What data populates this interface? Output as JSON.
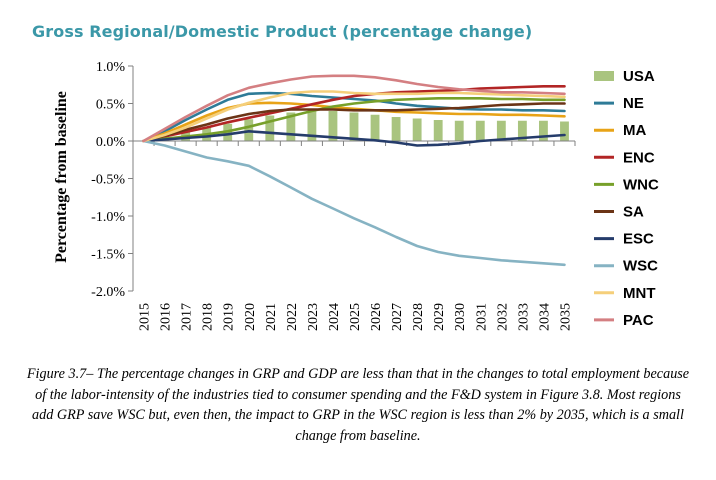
{
  "header": {
    "title": "Gross Regional/Domestic Product (percentage change)"
  },
  "caption": "Figure 3.7– The percentage changes in GRP and GDP are less than that in the changes to total employment because of the labor-intensity of the industries tied to consumer spending and the F&D system in Figure 3.8. Most regions add GRP save WSC but, even then, the impact to GRP in the WSC region is less than 2% by 2035, which is a small change from baseline.",
  "chart_data": {
    "type": "bar+line",
    "title": "Gross Regional/Domestic Product (percentage change)",
    "xlabel": "",
    "ylabel": "Percentage from baseline",
    "ylim": [
      -0.02,
      0.01
    ],
    "yticks": [
      0.01,
      0.005,
      0.0,
      -0.005,
      -0.01,
      -0.015,
      -0.02
    ],
    "ytick_labels": [
      "1.0%",
      "0.5%",
      "0.0%",
      "-0.5%",
      "-1.0%",
      "-1.5%",
      "-2.0%"
    ],
    "grid": false,
    "legend_position": "right",
    "categories": [
      "2015",
      "2016",
      "2017",
      "2018",
      "2019",
      "2020",
      "2021",
      "2022",
      "2023",
      "2024",
      "2025",
      "2026",
      "2027",
      "2028",
      "2029",
      "2030",
      "2031",
      "2032",
      "2033",
      "2034",
      "2035"
    ],
    "bar_series": {
      "name": "USA",
      "color": "#a9c47f",
      "values": [
        0.0,
        0.0007,
        0.0014,
        0.0018,
        0.0023,
        0.0029,
        0.0034,
        0.0038,
        0.004,
        0.004,
        0.0038,
        0.0035,
        0.0032,
        0.003,
        0.0028,
        0.0027,
        0.0027,
        0.0027,
        0.0027,
        0.0027,
        0.0026
      ]
    },
    "series": [
      {
        "name": "NE",
        "color": "#2e7b97",
        "values": [
          0.0,
          0.0013,
          0.0028,
          0.0042,
          0.0055,
          0.0063,
          0.0064,
          0.0063,
          0.006,
          0.0058,
          0.0056,
          0.0054,
          0.005,
          0.0047,
          0.0045,
          0.0043,
          0.0042,
          0.0042,
          0.0041,
          0.0041,
          0.004
        ]
      },
      {
        "name": "MA",
        "color": "#e8a317",
        "values": [
          0.0,
          0.001,
          0.0022,
          0.0034,
          0.0044,
          0.005,
          0.0051,
          0.005,
          0.0048,
          0.0045,
          0.0043,
          0.0041,
          0.0039,
          0.0038,
          0.0037,
          0.0036,
          0.0036,
          0.0035,
          0.0035,
          0.0034,
          0.0033
        ]
      },
      {
        "name": "ENC",
        "color": "#b22525",
        "values": [
          0.0,
          0.0006,
          0.0012,
          0.0018,
          0.0025,
          0.0031,
          0.0037,
          0.0043,
          0.0049,
          0.0055,
          0.006,
          0.0063,
          0.0065,
          0.0066,
          0.0067,
          0.0068,
          0.007,
          0.0071,
          0.0072,
          0.0073,
          0.0073
        ]
      },
      {
        "name": "WNC",
        "color": "#77a02a",
        "values": [
          0.0,
          0.0003,
          0.0006,
          0.0009,
          0.0013,
          0.0019,
          0.0026,
          0.0033,
          0.004,
          0.0046,
          0.005,
          0.0053,
          0.0055,
          0.0056,
          0.0057,
          0.0057,
          0.0057,
          0.0056,
          0.0056,
          0.0055,
          0.0055
        ]
      },
      {
        "name": "SA",
        "color": "#6b3416",
        "values": [
          0.0,
          0.0007,
          0.0015,
          0.0022,
          0.003,
          0.0036,
          0.004,
          0.0042,
          0.0042,
          0.0042,
          0.0041,
          0.0041,
          0.0041,
          0.0042,
          0.0043,
          0.0044,
          0.0046,
          0.0048,
          0.0049,
          0.005,
          0.005
        ]
      },
      {
        "name": "ESC",
        "color": "#253c6b",
        "values": [
          0.0,
          0.0002,
          0.0004,
          0.0006,
          0.0009,
          0.0013,
          0.0011,
          0.0009,
          0.0007,
          0.0005,
          0.0003,
          0.0001,
          -0.0002,
          -0.0006,
          -0.0005,
          -0.0003,
          0.0,
          0.0002,
          0.0004,
          0.0006,
          0.0008
        ]
      },
      {
        "name": "WSC",
        "color": "#86b3c3",
        "values": [
          0.0,
          -0.0006,
          -0.0014,
          -0.0022,
          -0.0027,
          -0.0033,
          -0.0047,
          -0.0062,
          -0.0077,
          -0.009,
          -0.0103,
          -0.0115,
          -0.0128,
          -0.014,
          -0.0148,
          -0.0153,
          -0.0156,
          -0.0159,
          -0.0161,
          -0.0163,
          -0.0165
        ]
      },
      {
        "name": "MNT",
        "color": "#f5cf7a",
        "values": [
          0.0,
          0.0008,
          0.0018,
          0.003,
          0.0042,
          0.0051,
          0.0058,
          0.0064,
          0.0066,
          0.0066,
          0.0064,
          0.0063,
          0.0063,
          0.0063,
          0.0064,
          0.0064,
          0.0063,
          0.0062,
          0.0061,
          0.006,
          0.0059
        ]
      },
      {
        "name": "PAC",
        "color": "#d47f82",
        "values": [
          0.0,
          0.0016,
          0.0032,
          0.0047,
          0.0061,
          0.0071,
          0.0077,
          0.0082,
          0.0086,
          0.0087,
          0.0087,
          0.0085,
          0.0081,
          0.0076,
          0.0072,
          0.0069,
          0.0067,
          0.0065,
          0.0065,
          0.0064,
          0.0063
        ]
      }
    ]
  }
}
